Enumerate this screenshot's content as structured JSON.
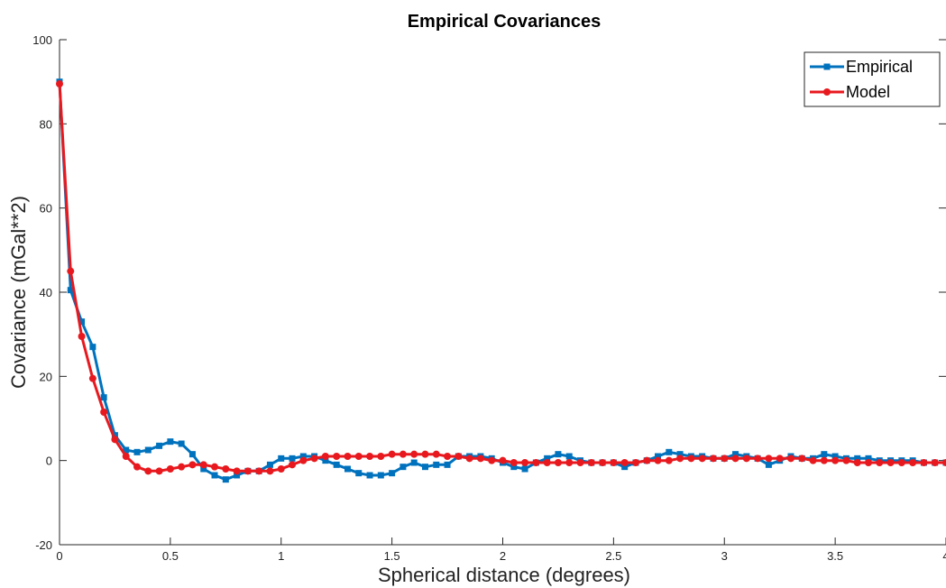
{
  "chart_data": {
    "type": "line",
    "title": "Empirical Covariances",
    "xlabel": "Spherical distance (degrees)",
    "ylabel": "Covariance (mGal**2)",
    "xlim": [
      0,
      4
    ],
    "ylim": [
      -20,
      100
    ],
    "xticks": [
      0,
      0.5,
      1,
      1.5,
      2,
      2.5,
      3,
      3.5,
      4
    ],
    "xtick_labels": [
      "0",
      "0.5",
      "1",
      "1.5",
      "2",
      "2.5",
      "3",
      "3.5",
      "4"
    ],
    "yticks": [
      -20,
      0,
      20,
      40,
      60,
      80,
      100
    ],
    "ytick_labels": [
      "-20",
      "0",
      "20",
      "40",
      "60",
      "80",
      "100"
    ],
    "grid": false,
    "legend_position": "top-right",
    "series": [
      {
        "name": "Empirical",
        "color": "#0072BD",
        "marker": "square",
        "x": [
          0,
          0.05,
          0.1,
          0.15,
          0.2,
          0.25,
          0.3,
          0.35,
          0.4,
          0.45,
          0.5,
          0.55,
          0.6,
          0.65,
          0.7,
          0.75,
          0.8,
          0.85,
          0.9,
          0.95,
          1.0,
          1.05,
          1.1,
          1.15,
          1.2,
          1.25,
          1.3,
          1.35,
          1.4,
          1.45,
          1.5,
          1.55,
          1.6,
          1.65,
          1.7,
          1.75,
          1.8,
          1.85,
          1.9,
          1.95,
          2.0,
          2.05,
          2.1,
          2.15,
          2.2,
          2.25,
          2.3,
          2.35,
          2.4,
          2.45,
          2.5,
          2.55,
          2.6,
          2.65,
          2.7,
          2.75,
          2.8,
          2.85,
          2.9,
          2.95,
          3.0,
          3.05,
          3.1,
          3.15,
          3.2,
          3.25,
          3.3,
          3.35,
          3.4,
          3.45,
          3.5,
          3.55,
          3.6,
          3.65,
          3.7,
          3.75,
          3.8,
          3.85,
          3.9,
          3.95,
          4.0
        ],
        "y": [
          90,
          40.5,
          33,
          27,
          15,
          6,
          2.5,
          2,
          2.5,
          3.5,
          4.5,
          4,
          1.5,
          -2,
          -3.5,
          -4.5,
          -3.5,
          -2.5,
          -2.5,
          -1,
          0.5,
          0.5,
          1,
          1,
          0,
          -1,
          -2,
          -3,
          -3.5,
          -3.5,
          -3,
          -1.5,
          -0.5,
          -1.5,
          -1,
          -1,
          1,
          1,
          1,
          0.5,
          -0.5,
          -1.5,
          -2,
          -0.5,
          0.5,
          1.5,
          1,
          0,
          -0.5,
          -0.5,
          -0.5,
          -1.5,
          -0.5,
          0,
          1,
          2,
          1.5,
          1,
          1,
          0.5,
          0.5,
          1.5,
          1,
          0.5,
          -1,
          0,
          1,
          0.5,
          0.5,
          1.5,
          1,
          0.5,
          0.5,
          0.5,
          0,
          0,
          0,
          0,
          -0.5,
          -0.5,
          -0.5
        ]
      },
      {
        "name": "Model",
        "color": "#E8191E",
        "marker": "circle",
        "x": [
          0,
          0.05,
          0.1,
          0.15,
          0.2,
          0.25,
          0.3,
          0.35,
          0.4,
          0.45,
          0.5,
          0.55,
          0.6,
          0.65,
          0.7,
          0.75,
          0.8,
          0.85,
          0.9,
          0.95,
          1.0,
          1.05,
          1.1,
          1.15,
          1.2,
          1.25,
          1.3,
          1.35,
          1.4,
          1.45,
          1.5,
          1.55,
          1.6,
          1.65,
          1.7,
          1.75,
          1.8,
          1.85,
          1.9,
          1.95,
          2.0,
          2.05,
          2.1,
          2.15,
          2.2,
          2.25,
          2.3,
          2.35,
          2.4,
          2.45,
          2.5,
          2.55,
          2.6,
          2.65,
          2.7,
          2.75,
          2.8,
          2.85,
          2.9,
          2.95,
          3.0,
          3.05,
          3.1,
          3.15,
          3.2,
          3.25,
          3.3,
          3.35,
          3.4,
          3.45,
          3.5,
          3.55,
          3.6,
          3.65,
          3.7,
          3.75,
          3.8,
          3.85,
          3.9,
          3.95,
          4.0
        ],
        "y": [
          89.5,
          45,
          29.5,
          19.5,
          11.5,
          5,
          1,
          -1.5,
          -2.5,
          -2.5,
          -2,
          -1.5,
          -1,
          -1,
          -1.5,
          -2,
          -2.5,
          -2.5,
          -2.5,
          -2.5,
          -2,
          -1,
          0,
          0.5,
          1,
          1,
          1,
          1,
          1,
          1,
          1.5,
          1.5,
          1.5,
          1.5,
          1.5,
          1,
          1,
          0.5,
          0.5,
          0,
          0,
          -0.5,
          -0.5,
          -0.5,
          -0.5,
          -0.5,
          -0.5,
          -0.5,
          -0.5,
          -0.5,
          -0.5,
          -0.5,
          -0.5,
          0,
          0,
          0,
          0.5,
          0.5,
          0.5,
          0.5,
          0.5,
          0.5,
          0.5,
          0.5,
          0.5,
          0.5,
          0.5,
          0.5,
          0,
          0,
          0,
          0,
          -0.5,
          -0.5,
          -0.5,
          -0.5,
          -0.5,
          -0.5,
          -0.5,
          -0.5,
          -0.5
        ]
      }
    ]
  }
}
